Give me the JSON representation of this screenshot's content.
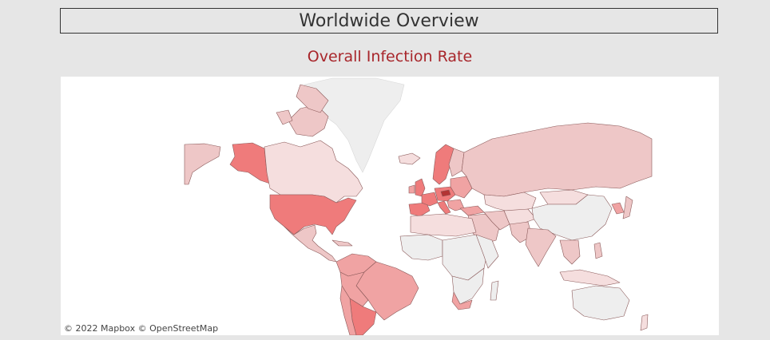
{
  "header": {
    "title": "Worldwide Overview"
  },
  "map": {
    "title": "Overall Infection Rate",
    "attribution": "© 2022 Mapbox  © OpenStreetMap",
    "colors": {
      "high": "#ef7b7b",
      "medium_high": "#f0a3a3",
      "medium": "#eec7c7",
      "low": "#f5dede",
      "no_data": "#eeeeee",
      "border": "#8b5a5a"
    }
  }
}
